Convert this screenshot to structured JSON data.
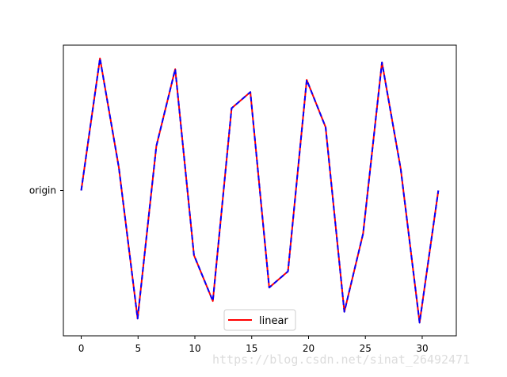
{
  "chart_data": {
    "type": "line",
    "x": [
      0,
      1.65,
      3.31,
      4.96,
      6.61,
      8.27,
      9.92,
      11.58,
      13.23,
      14.88,
      16.54,
      18.19,
      19.84,
      21.5,
      23.15,
      24.8,
      26.46,
      28.11,
      29.77,
      31.42
    ],
    "series": [
      {
        "name": "linear",
        "color": "#ff0000",
        "style": "solid",
        "values": [
          0.0,
          0.98,
          0.17,
          -0.95,
          0.33,
          0.9,
          -0.48,
          -0.82,
          0.61,
          0.73,
          -0.72,
          -0.6,
          0.82,
          0.47,
          -0.9,
          -0.32,
          0.95,
          0.16,
          -0.98,
          0.0
        ]
      },
      {
        "name": "",
        "color": "#0000ff",
        "style": "dashed",
        "values": [
          0.0,
          0.98,
          0.17,
          -0.95,
          0.33,
          0.9,
          -0.48,
          -0.82,
          0.61,
          0.73,
          -0.72,
          -0.6,
          0.82,
          0.47,
          -0.9,
          -0.32,
          0.95,
          0.16,
          -0.98,
          0.0
        ]
      }
    ],
    "xticks": [
      0,
      5,
      10,
      15,
      20,
      25,
      30
    ],
    "xtick_labels": [
      "0",
      "5",
      "10",
      "15",
      "20",
      "25",
      "30"
    ],
    "yticks": [
      0
    ],
    "ytick_labels": [
      "origin"
    ],
    "xlim": [
      -1.571,
      33.0
    ],
    "ylim": [
      -1.078,
      1.078
    ],
    "legend_position": "lower center",
    "grid": false
  },
  "watermark": "https://blog.csdn.net/sinat_26492471"
}
